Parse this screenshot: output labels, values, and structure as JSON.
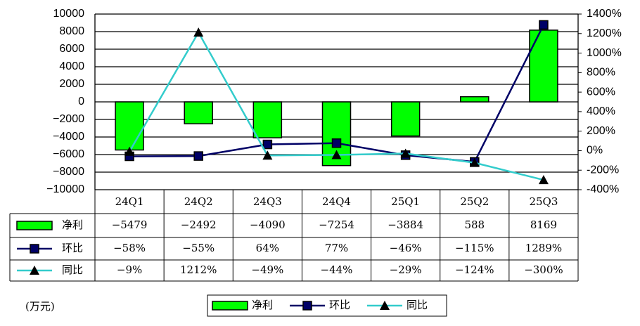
{
  "chart_data": {
    "type": "bar_line_table",
    "unit": "(万元)",
    "categories": [
      "24Q1",
      "24Q2",
      "24Q3",
      "24Q4",
      "25Q1",
      "25Q2",
      "25Q3"
    ],
    "ylim": [
      -10000,
      10000
    ],
    "yticks": [
      {
        "value": -10000,
        "label": "−10000"
      },
      {
        "value": -8000,
        "label": "−8000"
      },
      {
        "value": -6000,
        "label": "−6000"
      },
      {
        "value": -4000,
        "label": "−4000"
      },
      {
        "value": -2000,
        "label": "−2000"
      },
      0,
      2000,
      4000,
      6000,
      8000,
      10000
    ],
    "y2lim": [
      -400,
      1400
    ],
    "y2ticks": [
      {
        "value": -400,
        "label": "-400%"
      },
      {
        "value": -200,
        "label": "-200%"
      },
      {
        "value": 0,
        "label": "0%"
      },
      {
        "value": 200,
        "label": "200%"
      },
      {
        "value": 400,
        "label": "400%"
      },
      {
        "value": 600,
        "label": "600%"
      },
      {
        "value": 800,
        "label": "800%"
      },
      {
        "value": 1000,
        "label": "1000%"
      },
      {
        "value": 1200,
        "label": "1200%"
      },
      {
        "value": 1400,
        "label": "1400%"
      }
    ],
    "grid": true,
    "series": [
      {
        "name": "净利",
        "type": "bar",
        "color": "#00ff00",
        "values": [
          -5479,
          -2492,
          -4090,
          -7254,
          -3884,
          588,
          8169
        ],
        "value_labels": [
          "−5479",
          "−2492",
          "−4090",
          "−7254",
          "−3884",
          "588",
          "8169"
        ]
      },
      {
        "name": "环比",
        "type": "line",
        "marker": "square",
        "axis": "y2",
        "color": "#000066",
        "values": [
          -58,
          -55,
          64,
          77,
          -46,
          -115,
          1289
        ],
        "value_labels": [
          "−58%",
          "−55%",
          "64%",
          "77%",
          "−46%",
          "−115%",
          "1289%"
        ]
      },
      {
        "name": "同比",
        "type": "line",
        "marker": "triangle",
        "axis": "y2",
        "color": "#33cccc",
        "values": [
          -9,
          1212,
          -49,
          -44,
          -29,
          -124,
          -300
        ],
        "value_labels": [
          "−9%",
          "1212%",
          "−49%",
          "−44%",
          "−29%",
          "−124%",
          "−300%"
        ]
      }
    ]
  }
}
